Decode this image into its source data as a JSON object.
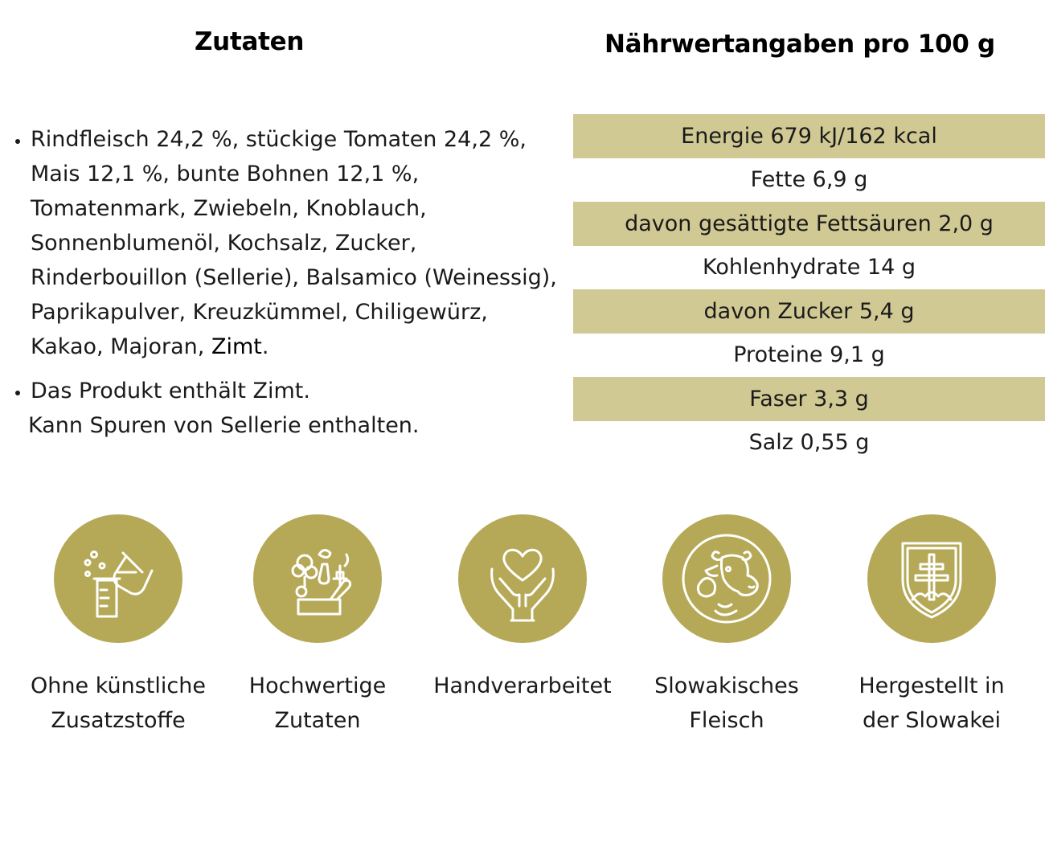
{
  "ingredients": {
    "title": "Zutaten",
    "text_before_allergen": "Rindfleisch 24,2 %, stückige Tomaten 24,2 %, Mais 12,1 %, bunte Bohnen 12,1 %, Tomatenmark, Zwiebeln, Knoblauch, Sonnenblumenöl, Kochsalz, Zucker, Rinderbouillon (Sellerie), Balsamico (Weinessig), Paprikapulver, Kreuzkümmel, Chiligewürz, Kakao, Majoran, ",
    "allergen": "Zimt",
    "text_after_allergen": ".",
    "notice_line1": "Das Produkt enthält Zimt.",
    "notice_line2": "Kann Spuren von Sellerie enthalten."
  },
  "nutrition": {
    "title": "Nährwertangaben pro 100 g",
    "rows": [
      "Energie 679 kJ/162 kcal",
      "Fette 6,9 g",
      "davon gesättigte Fettsäuren 2,0 g",
      "Kohlenhydrate 14 g",
      "davon Zucker 5,4 g",
      "Proteine 9,1 g",
      "Faser 3,3 g",
      "Salz 0,55 g"
    ],
    "shade_color": "#d1c994"
  },
  "features": [
    {
      "icon": "lab-flask-icon",
      "label_line1": "Ohne künstliche",
      "label_line2": "Zusatzstoffe"
    },
    {
      "icon": "vegetables-icon",
      "label_line1": "Hochwertige",
      "label_line2": "Zutaten"
    },
    {
      "icon": "heart-hands-icon",
      "label_line1": "Handverarbeitet",
      "label_line2": ""
    },
    {
      "icon": "cow-icon",
      "label_line1": "Slowakisches",
      "label_line2": "Fleisch"
    },
    {
      "icon": "slovak-coat-of-arms-icon",
      "label_line1": "Hergestellt in",
      "label_line2": "der Slowakei"
    }
  ],
  "colors": {
    "icon_circle": "#b5a957",
    "icon_stroke": "#ffffff"
  }
}
